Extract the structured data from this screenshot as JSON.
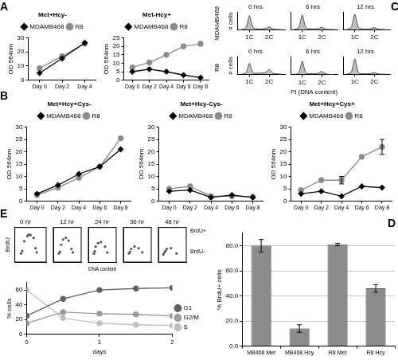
{
  "chart_data": [
    {
      "panel": "A",
      "type": "line",
      "title": "Met+Hcy-",
      "y_label": "OD 564nm",
      "categories": [
        "Day 0",
        "Day 2",
        "Day 4"
      ],
      "series": [
        {
          "name": "MDAMB468",
          "color": "#000000",
          "marker": "diamond",
          "values": [
            5,
            15.5,
            26.5
          ]
        },
        {
          "name": "R8",
          "color": "#8c8c8c",
          "marker": "circle",
          "values": [
            8.5,
            17,
            26
          ]
        }
      ],
      "ylim": [
        0,
        30
      ],
      "yticks": [
        0,
        10,
        20,
        30
      ],
      "grid": false,
      "legend": "top"
    },
    {
      "type": "line",
      "title": "Met-Hcy+",
      "y_label": "OD 564nm",
      "categories": [
        "Day 0",
        "Day 2",
        "Day 4",
        "Day 6",
        "Day 8"
      ],
      "series": [
        {
          "name": "MDAMB468",
          "color": "#000000",
          "marker": "diamond",
          "values": [
            5,
            6.5,
            5,
            3,
            1.5
          ]
        },
        {
          "name": "R8",
          "color": "#8c8c8c",
          "marker": "circle",
          "values": [
            7.5,
            10.5,
            15,
            20,
            21.5
          ]
        }
      ],
      "ylim": [
        0,
        25
      ],
      "yticks": [
        0,
        5,
        10,
        15,
        20,
        25
      ],
      "grid": false,
      "legend": "top"
    },
    {
      "panel": "C",
      "type": "area",
      "title": "0 hrs",
      "row_label": "MDAMB468",
      "y_label": "# cells",
      "x": [
        0.6,
        0.8,
        0.9,
        1.0,
        1.1,
        1.2,
        1.4,
        1.6,
        1.8,
        1.9,
        2.0,
        2.1,
        2.2,
        2.4,
        2.6
      ],
      "values": [
        2,
        10,
        45,
        90,
        45,
        12,
        6,
        5,
        8,
        14,
        18,
        12,
        5,
        2,
        1
      ],
      "color": "#4d4d4d",
      "xlim": [
        0.4,
        2.8
      ],
      "xticks": [
        {
          "value": 1,
          "label": "1C"
        },
        {
          "value": 2,
          "label": "2C"
        }
      ],
      "ylim": [
        0,
        110
      ],
      "tick_labels": "x"
    },
    {
      "type": "area",
      "title": "6 hrs",
      "x": [
        0.6,
        0.8,
        0.9,
        1.0,
        1.1,
        1.2,
        1.4,
        1.6,
        1.8,
        1.9,
        2.0,
        2.1,
        2.2,
        2.4,
        2.6
      ],
      "values": [
        2,
        12,
        50,
        95,
        48,
        12,
        6,
        5,
        7,
        12,
        16,
        10,
        4,
        2,
        1
      ],
      "color": "#4d4d4d",
      "xlim": [
        0.4,
        2.8
      ],
      "xticks": [
        {
          "value": 1,
          "label": "1C"
        },
        {
          "value": 2,
          "label": "2C"
        }
      ],
      "ylim": [
        0,
        110
      ],
      "tick_labels": "x"
    },
    {
      "type": "area",
      "title": "12 hrs",
      "x": [
        0.6,
        0.8,
        0.9,
        1.0,
        1.1,
        1.2,
        1.4,
        1.6,
        1.8,
        1.9,
        2.0,
        2.1,
        2.2,
        2.4,
        2.6
      ],
      "values": [
        2,
        14,
        55,
        100,
        50,
        12,
        5,
        4,
        6,
        10,
        14,
        9,
        4,
        2,
        1
      ],
      "color": "#4d4d4d",
      "xlim": [
        0.4,
        2.8
      ],
      "xticks": [
        {
          "value": 1,
          "label": "1C"
        },
        {
          "value": 2,
          "label": "2C"
        }
      ],
      "ylim": [
        0,
        110
      ],
      "tick_labels": "x"
    },
    {
      "type": "area",
      "title": "0 hrs",
      "row_label": "R8",
      "y_label": "# cells",
      "x": [
        0.6,
        0.8,
        0.9,
        1.0,
        1.1,
        1.2,
        1.4,
        1.6,
        1.8,
        1.9,
        2.0,
        2.1,
        2.2,
        2.4,
        2.6
      ],
      "values": [
        2,
        8,
        35,
        70,
        35,
        10,
        8,
        8,
        12,
        22,
        30,
        20,
        8,
        3,
        1
      ],
      "color": "#4d4d4d",
      "xlim": [
        0.4,
        2.8
      ],
      "xticks": [
        {
          "value": 1,
          "label": "1C"
        },
        {
          "value": 2,
          "label": "2C"
        }
      ],
      "ylim": [
        0,
        110
      ],
      "tick_labels": "x"
    },
    {
      "type": "area",
      "title": "6 hrs",
      "x_label": "PI (DNA content)",
      "x": [
        0.6,
        0.8,
        0.9,
        1.0,
        1.1,
        1.2,
        1.4,
        1.6,
        1.8,
        1.9,
        2.0,
        2.1,
        2.2,
        2.4,
        2.6
      ],
      "values": [
        2,
        10,
        42,
        85,
        42,
        10,
        7,
        6,
        9,
        15,
        20,
        13,
        5,
        2,
        1
      ],
      "color": "#4d4d4d",
      "xlim": [
        0.4,
        2.8
      ],
      "xticks": [
        {
          "value": 1,
          "label": "1C"
        },
        {
          "value": 2,
          "label": "2C"
        }
      ],
      "ylim": [
        0,
        110
      ],
      "tick_labels": "x"
    },
    {
      "type": "area",
      "title": "12 hrs",
      "x": [
        0.6,
        0.8,
        0.9,
        1.0,
        1.1,
        1.2,
        1.4,
        1.6,
        1.8,
        1.9,
        2.0,
        2.1,
        2.2,
        2.4,
        2.6
      ],
      "values": [
        2,
        12,
        50,
        98,
        48,
        10,
        5,
        4,
        5,
        8,
        10,
        7,
        3,
        1,
        1
      ],
      "color": "#4d4d4d",
      "xlim": [
        0.4,
        2.8
      ],
      "xticks": [
        {
          "value": 1,
          "label": "1C"
        },
        {
          "value": 2,
          "label": "2C"
        }
      ],
      "ylim": [
        0,
        110
      ],
      "tick_labels": "x"
    },
    {
      "panel": "B",
      "type": "line",
      "title": "Met+Hcy+Cys-",
      "y_label": "OD 564nm",
      "categories": [
        "Day 0",
        "Day 2",
        "Day 4",
        "Day 6",
        "Day 8"
      ],
      "series": [
        {
          "name": "MDAMB468",
          "color": "#000000",
          "marker": "diamond",
          "values": [
            3,
            6.5,
            11,
            14,
            21
          ]
        },
        {
          "name": "R8",
          "color": "#8c8c8c",
          "marker": "circle",
          "values": [
            2.5,
            5.5,
            9.5,
            14,
            25.5
          ]
        }
      ],
      "ylim": [
        0,
        30
      ],
      "yticks": [
        0,
        5,
        10,
        15,
        20,
        25,
        30
      ],
      "grid": false,
      "legend": "top"
    },
    {
      "type": "line",
      "title": "Met+Hcy-Cys-",
      "y_label": "OD 564nm",
      "categories": [
        "Day 0",
        "Day 2",
        "Day 4",
        "Day 6",
        "Day 8"
      ],
      "series": [
        {
          "name": "MDAMB468",
          "color": "#000000",
          "marker": "diamond",
          "values": [
            4,
            4.5,
            1.5,
            2.5,
            1.5
          ]
        },
        {
          "name": "R8",
          "color": "#8c8c8c",
          "marker": "circle",
          "values": [
            5,
            6,
            2,
            2,
            1.8
          ]
        }
      ],
      "ylim": [
        0,
        30
      ],
      "yticks": [
        0,
        5,
        10,
        15,
        20,
        25,
        30
      ],
      "grid": false,
      "legend": "top"
    },
    {
      "type": "line",
      "title": "Met+Hcy+Cys+",
      "y_label": "OD 564nm",
      "categories": [
        "Day 0",
        "Day 2",
        "Day 4",
        "Day 6",
        "Day 8"
      ],
      "series": [
        {
          "name": "MDAMB468",
          "color": "#000000",
          "marker": "diamond",
          "values": [
            3,
            4,
            2,
            6,
            5.5
          ]
        },
        {
          "name": "R8",
          "color": "#8c8c8c",
          "marker": "circle",
          "values": [
            4.5,
            8.5,
            8.5,
            18,
            22
          ],
          "errors": [
            null,
            null,
            1.5,
            null,
            3
          ]
        }
      ],
      "ylim": [
        0,
        30
      ],
      "yticks": [
        0,
        5,
        10,
        15,
        20,
        25,
        30
      ],
      "grid": false,
      "legend": "top"
    },
    {
      "panel": "E",
      "type": "scatter",
      "title": "0 hr",
      "y_label": "BrdU",
      "x": [
        20,
        24,
        30,
        40,
        50,
        60,
        66,
        70,
        45
      ],
      "values": [
        25,
        32,
        60,
        75,
        78,
        70,
        40,
        28,
        80
      ],
      "color": "#555555",
      "xlim": [
        0,
        100
      ],
      "ylim": [
        0,
        100
      ],
      "tick_labels": false
    },
    {
      "type": "scatter",
      "title": "12 hr",
      "x": [
        20,
        24,
        28,
        35,
        45,
        55,
        65,
        70
      ],
      "values": [
        25,
        30,
        50,
        65,
        70,
        62,
        38,
        28
      ],
      "color": "#555555",
      "xlim": [
        0,
        100
      ],
      "ylim": [
        0,
        100
      ],
      "tick_labels": false
    },
    {
      "type": "scatter",
      "title": "24 hr",
      "x_label": "DNA content",
      "x": [
        20,
        23,
        26,
        35,
        45,
        60,
        68
      ],
      "values": [
        25,
        32,
        45,
        55,
        58,
        45,
        28
      ],
      "color": "#555555",
      "xlim": [
        0,
        100
      ],
      "ylim": [
        0,
        100
      ],
      "tick_labels": false
    },
    {
      "type": "scatter",
      "title": "36 hr",
      "x": [
        20,
        24,
        28,
        40,
        55,
        68
      ],
      "values": [
        25,
        30,
        38,
        45,
        40,
        28
      ],
      "color": "#555555",
      "xlim": [
        0,
        100
      ],
      "ylim": [
        0,
        100
      ],
      "tick_labels": false
    },
    {
      "type": "scatter",
      "title": "48 hr",
      "annotations": [
        "BrdU+",
        "BrdU-"
      ],
      "x": [
        18,
        22,
        26,
        30,
        45,
        65
      ],
      "values": [
        22,
        28,
        32,
        38,
        40,
        25
      ],
      "color": "#555555",
      "xlim": [
        0,
        100
      ],
      "ylim": [
        0,
        100
      ],
      "tick_labels": false
    },
    {
      "type": "line",
      "x_label": "days",
      "y_label": "% cells",
      "x": [
        0,
        0.5,
        1,
        1.5,
        2
      ],
      "series": [
        {
          "name": "G1",
          "color": "#606060",
          "marker": "circle",
          "values": [
            25,
            48,
            60,
            62,
            63
          ]
        },
        {
          "name": "G2/M",
          "color": "#9a9a9a",
          "marker": "circle",
          "values": [
            15,
            30,
            28,
            27,
            25
          ]
        },
        {
          "name": "S",
          "color": "#c0c0c0",
          "marker": "circle",
          "values": [
            60,
            22,
            15,
            13,
            12
          ]
        }
      ],
      "xlim": [
        0,
        2
      ],
      "xticks": [
        0,
        1,
        2
      ],
      "ylim": [
        0,
        70
      ],
      "yticks": [
        0,
        20,
        40,
        60
      ],
      "grid": false,
      "legend": "right"
    },
    {
      "panel": "D",
      "type": "bar",
      "y_label": "% BrdU+ cells",
      "categories": [
        "MB468 Met",
        "MB468 Hcy",
        "R8 Met",
        "R8 Hcy"
      ],
      "values": [
        80,
        14,
        81,
        46
      ],
      "errors": [
        5,
        3,
        1,
        3
      ],
      "color": "#8c8c8c",
      "ylim": [
        0,
        90
      ],
      "yticks": [
        {
          "value": 0,
          "label": "0.0"
        },
        {
          "value": 20,
          "label": "20.0"
        },
        {
          "value": 40,
          "label": "40.0"
        },
        {
          "value": 60,
          "label": "60.0"
        },
        {
          "value": 80,
          "label": "80.0"
        }
      ],
      "grid": true
    }
  ]
}
